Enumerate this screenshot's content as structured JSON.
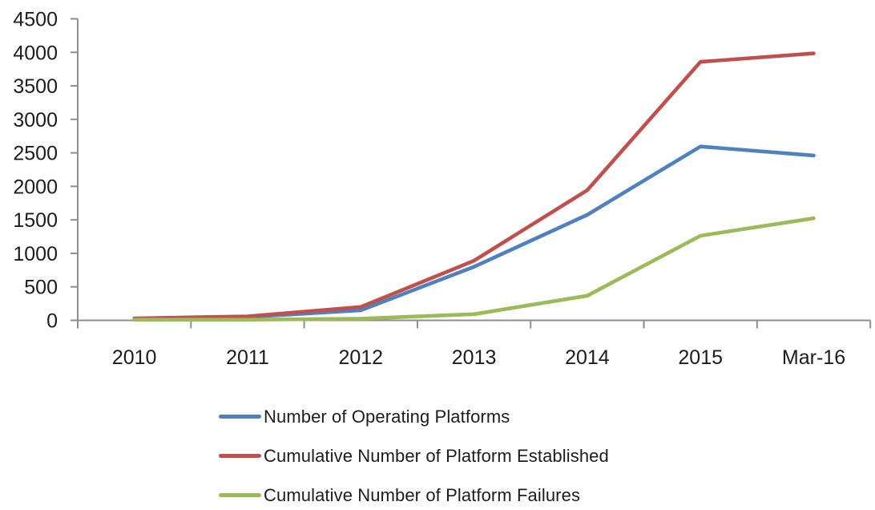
{
  "chart_data": {
    "type": "line",
    "title": "",
    "xlabel": "",
    "ylabel": "",
    "categories": [
      "2010",
      "2011",
      "2012",
      "2013",
      "2014",
      "2015",
      "Mar-16"
    ],
    "series": [
      {
        "name": "Number of Operating Platforms",
        "color": "#4F81BD",
        "values": [
          20,
          50,
          150,
          800,
          1575,
          2595,
          2461
        ]
      },
      {
        "name": "Cumulative Number of Platform Established",
        "color": "#C0504D",
        "values": [
          30,
          60,
          200,
          890,
          1942,
          3858,
          3984
        ]
      },
      {
        "name": "Cumulative Number of Platform Failures",
        "color": "#9BBB59",
        "values": [
          10,
          10,
          25,
          92,
          367,
          1263,
          1523
        ]
      }
    ],
    "ylim": [
      0,
      4500
    ],
    "y_step": 500,
    "y_tick_labels": [
      "0",
      "500",
      "1000",
      "1500",
      "2000",
      "2500",
      "3000",
      "3500",
      "4000",
      "4500"
    ],
    "grid": false,
    "legend_position": "bottom-left",
    "axis_color": "#8E8E8E",
    "text_color": "#1C1C1C",
    "line_width": 4.6
  }
}
